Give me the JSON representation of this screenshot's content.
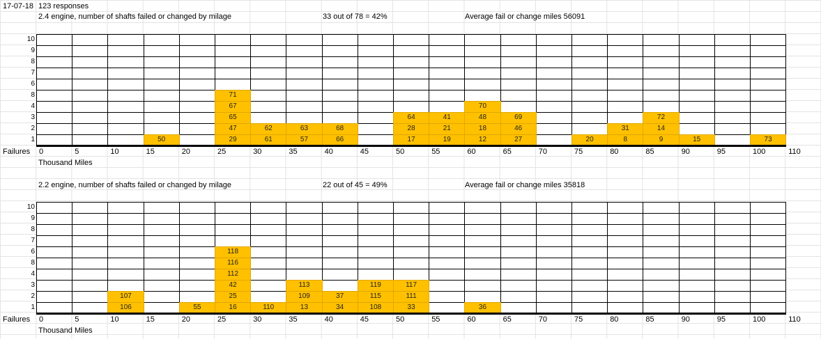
{
  "header": {
    "date": "17-07-18",
    "responses": "123 responses"
  },
  "charts": [
    {
      "title": "2.4 engine, number of shafts failed or changed by milage",
      "ratio": "33 out of 78 = 42%",
      "average": "Average fail or change miles 56091",
      "y_labels": [
        "10",
        "9",
        "8",
        "7",
        "6",
        "8",
        "4",
        "3",
        "2",
        "1"
      ],
      "failures_label": "Failures",
      "x_labels": [
        "0",
        "5",
        "10",
        "15",
        "20",
        "25",
        "30",
        "35",
        "40",
        "45",
        "50",
        "55",
        "60",
        "65",
        "70",
        "75",
        "80",
        "85",
        "90",
        "95",
        "100",
        "110"
      ],
      "x_axis_title": "Thousand Miles",
      "cells": [
        {
          "c": 3,
          "r": 1,
          "v": "50"
        },
        {
          "c": 5,
          "r": 1,
          "v": "29"
        },
        {
          "c": 5,
          "r": 2,
          "v": "47"
        },
        {
          "c": 5,
          "r": 3,
          "v": "65"
        },
        {
          "c": 5,
          "r": 4,
          "v": "67"
        },
        {
          "c": 5,
          "r": 5,
          "v": "71"
        },
        {
          "c": 6,
          "r": 1,
          "v": "61"
        },
        {
          "c": 6,
          "r": 2,
          "v": "62"
        },
        {
          "c": 7,
          "r": 1,
          "v": "57"
        },
        {
          "c": 7,
          "r": 2,
          "v": "63"
        },
        {
          "c": 8,
          "r": 1,
          "v": "66"
        },
        {
          "c": 8,
          "r": 2,
          "v": "68"
        },
        {
          "c": 10,
          "r": 1,
          "v": "17"
        },
        {
          "c": 10,
          "r": 2,
          "v": "28"
        },
        {
          "c": 10,
          "r": 3,
          "v": "64"
        },
        {
          "c": 11,
          "r": 1,
          "v": "19"
        },
        {
          "c": 11,
          "r": 2,
          "v": "21"
        },
        {
          "c": 11,
          "r": 3,
          "v": "41"
        },
        {
          "c": 12,
          "r": 1,
          "v": "12"
        },
        {
          "c": 12,
          "r": 2,
          "v": "18"
        },
        {
          "c": 12,
          "r": 3,
          "v": "48"
        },
        {
          "c": 12,
          "r": 4,
          "v": "70"
        },
        {
          "c": 13,
          "r": 1,
          "v": "27"
        },
        {
          "c": 13,
          "r": 2,
          "v": "46"
        },
        {
          "c": 13,
          "r": 3,
          "v": "69"
        },
        {
          "c": 15,
          "r": 1,
          "v": "20"
        },
        {
          "c": 16,
          "r": 1,
          "v": "8"
        },
        {
          "c": 16,
          "r": 2,
          "v": "31"
        },
        {
          "c": 17,
          "r": 1,
          "v": "9"
        },
        {
          "c": 17,
          "r": 2,
          "v": "14"
        },
        {
          "c": 17,
          "r": 3,
          "v": "72"
        },
        {
          "c": 18,
          "r": 1,
          "v": "15"
        },
        {
          "c": 20,
          "r": 1,
          "v": "73"
        }
      ]
    },
    {
      "title": "2.2 engine, number of shafts failed or changed by milage",
      "ratio": "22 out of 45 = 49%",
      "average": "Average fail or change miles 35818",
      "y_labels": [
        "10",
        "9",
        "8",
        "7",
        "6",
        "8",
        "4",
        "3",
        "2",
        "1"
      ],
      "failures_label": "Failures",
      "x_labels": [
        "0",
        "5",
        "10",
        "15",
        "20",
        "25",
        "30",
        "35",
        "40",
        "45",
        "50",
        "55",
        "60",
        "65",
        "70",
        "75",
        "80",
        "85",
        "90",
        "95",
        "100",
        "110"
      ],
      "x_axis_title": "Thousand Miles",
      "cells": [
        {
          "c": 2,
          "r": 1,
          "v": "106"
        },
        {
          "c": 2,
          "r": 2,
          "v": "107"
        },
        {
          "c": 4,
          "r": 1,
          "v": "55"
        },
        {
          "c": 5,
          "r": 1,
          "v": "16"
        },
        {
          "c": 5,
          "r": 2,
          "v": "25"
        },
        {
          "c": 5,
          "r": 3,
          "v": "42"
        },
        {
          "c": 5,
          "r": 4,
          "v": "112"
        },
        {
          "c": 5,
          "r": 5,
          "v": "116"
        },
        {
          "c": 5,
          "r": 6,
          "v": "118"
        },
        {
          "c": 6,
          "r": 1,
          "v": "110"
        },
        {
          "c": 7,
          "r": 1,
          "v": "13"
        },
        {
          "c": 7,
          "r": 2,
          "v": "109"
        },
        {
          "c": 7,
          "r": 3,
          "v": "113"
        },
        {
          "c": 8,
          "r": 1,
          "v": "34"
        },
        {
          "c": 8,
          "r": 2,
          "v": "37"
        },
        {
          "c": 9,
          "r": 1,
          "v": "108"
        },
        {
          "c": 9,
          "r": 2,
          "v": "115"
        },
        {
          "c": 9,
          "r": 3,
          "v": "119"
        },
        {
          "c": 10,
          "r": 1,
          "v": "33"
        },
        {
          "c": 10,
          "r": 2,
          "v": "111"
        },
        {
          "c": 10,
          "r": 3,
          "v": "117"
        },
        {
          "c": 12,
          "r": 1,
          "v": "36"
        }
      ]
    }
  ],
  "colors": {
    "fill": "#ffc000",
    "grid": "#000000"
  }
}
